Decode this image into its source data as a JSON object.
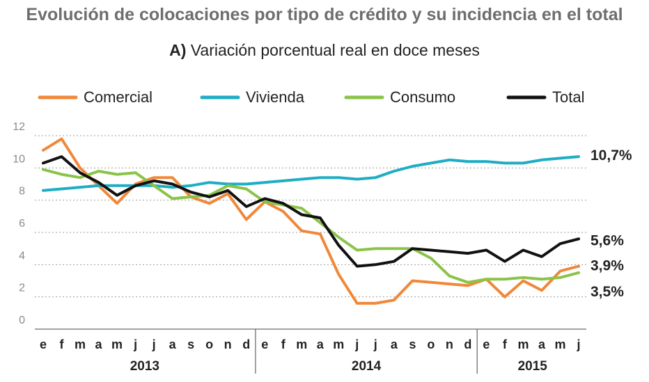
{
  "chart_data": {
    "type": "line",
    "title": "Evolución de colocaciones por tipo de crédito y su incidencia en el total",
    "subtitle_prefix": "A)",
    "subtitle": "Variación porcentual real en doce meses",
    "xlabel": "",
    "ylabel": "",
    "ylim": [
      0,
      12
    ],
    "yticks": [
      0,
      2,
      4,
      6,
      8,
      10,
      12
    ],
    "grid": true,
    "legend_position": "top",
    "categories": [
      "e",
      "f",
      "m",
      "a",
      "m",
      "j",
      "j",
      "a",
      "s",
      "o",
      "n",
      "d",
      "e",
      "f",
      "m",
      "a",
      "m",
      "j",
      "j",
      "a",
      "s",
      "o",
      "n",
      "d",
      "e",
      "f",
      "m",
      "a",
      "m",
      "j"
    ],
    "years": [
      {
        "label": "2013",
        "start": 0,
        "end": 11
      },
      {
        "label": "2014",
        "start": 12,
        "end": 23
      },
      {
        "label": "2015",
        "start": 24,
        "end": 29
      }
    ],
    "series": [
      {
        "name": "Comercial",
        "color": "#f0883a",
        "end_label": "3,9%",
        "values": [
          11.1,
          11.8,
          10.0,
          8.9,
          7.8,
          9.0,
          9.4,
          9.4,
          8.2,
          7.8,
          8.4,
          6.8,
          7.9,
          7.3,
          6.1,
          5.9,
          3.4,
          1.6,
          1.6,
          1.8,
          3.0,
          2.9,
          2.8,
          2.7,
          3.1,
          2.0,
          3.0,
          2.4,
          3.6,
          3.9
        ]
      },
      {
        "name": "Vivienda",
        "color": "#1fadc4",
        "end_label": "10,7%",
        "values": [
          8.6,
          8.7,
          8.8,
          8.9,
          8.9,
          8.9,
          8.9,
          8.8,
          8.9,
          9.1,
          9.0,
          9.0,
          9.1,
          9.2,
          9.3,
          9.4,
          9.4,
          9.3,
          9.4,
          9.8,
          10.1,
          10.3,
          10.5,
          10.4,
          10.4,
          10.3,
          10.3,
          10.5,
          10.6,
          10.7
        ]
      },
      {
        "name": "Consumo",
        "color": "#8bc34a",
        "end_label": "3,5%",
        "values": [
          9.9,
          9.6,
          9.4,
          9.8,
          9.6,
          9.7,
          8.9,
          8.1,
          8.2,
          8.3,
          8.9,
          8.7,
          7.9,
          7.7,
          7.5,
          6.6,
          5.7,
          4.9,
          5.0,
          5.0,
          5.0,
          4.4,
          3.3,
          2.9,
          3.1,
          3.1,
          3.2,
          3.1,
          3.2,
          3.5
        ]
      },
      {
        "name": "Total",
        "color": "#111111",
        "end_label": "5,6%",
        "values": [
          10.3,
          10.7,
          9.7,
          9.1,
          8.3,
          8.9,
          9.2,
          9.0,
          8.5,
          8.2,
          8.6,
          7.6,
          8.1,
          7.8,
          7.1,
          6.9,
          5.2,
          3.9,
          4.0,
          4.2,
          5.0,
          4.9,
          4.8,
          4.7,
          4.9,
          4.2,
          4.9,
          4.5,
          5.3,
          5.6
        ]
      }
    ]
  }
}
